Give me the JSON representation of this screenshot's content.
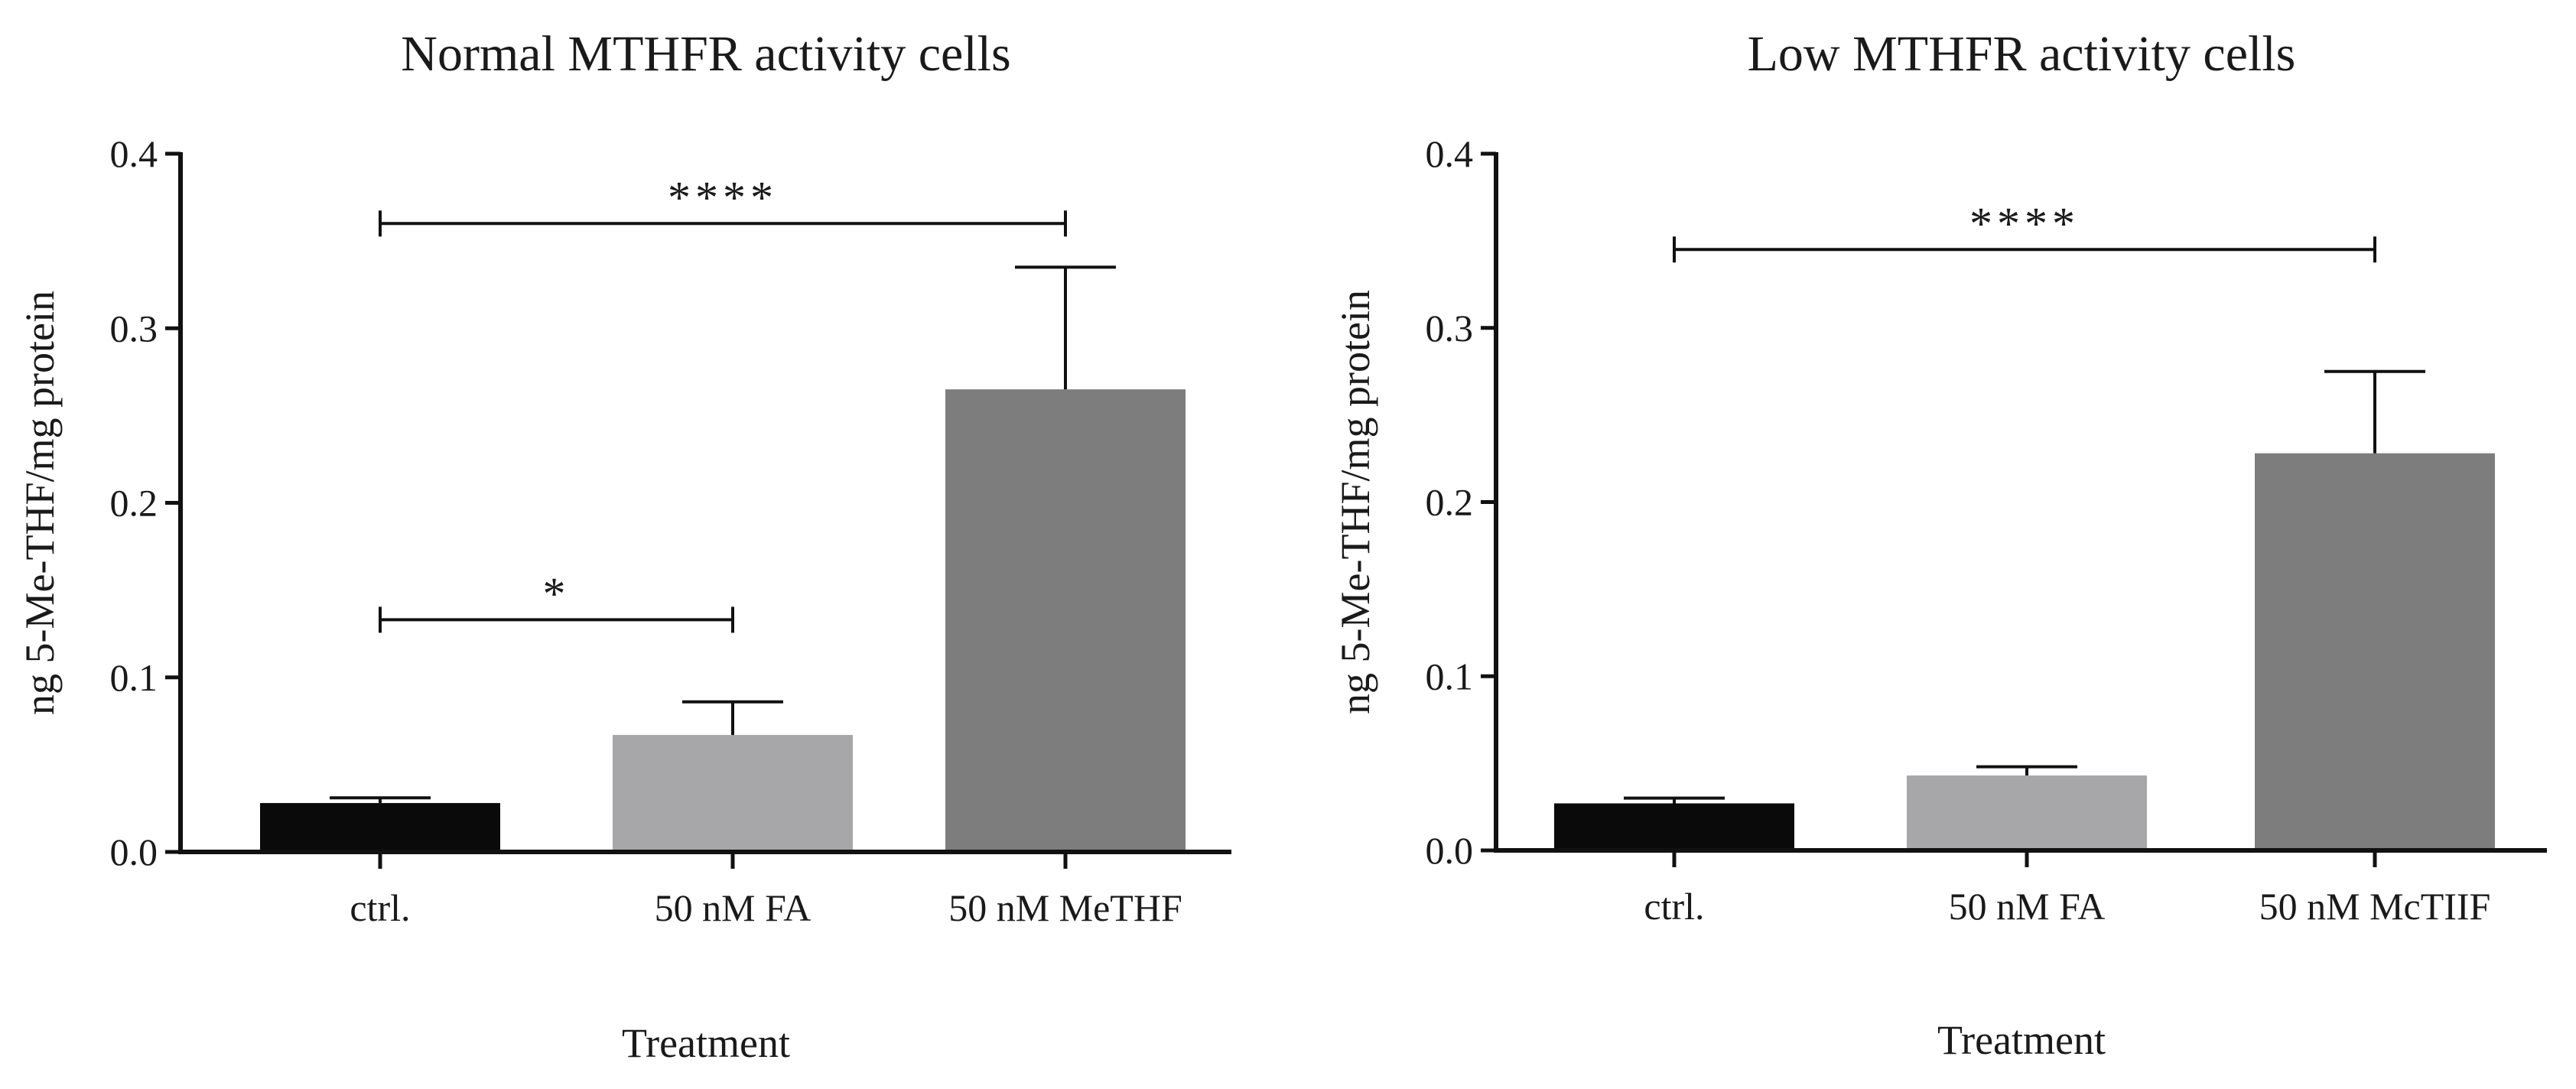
{
  "colors": {
    "axis": "#111111",
    "ctrl": "#0a0a0a",
    "fa": "#a7a7a9",
    "methf": "#7d7d7d"
  },
  "chart_data": [
    {
      "type": "bar",
      "title": "Normal MTHFR activity cells",
      "xlabel": "Treatment",
      "ylabel": "ng 5-Me-THF/mg protein",
      "ylim": [
        0,
        0.4
      ],
      "yticks": [
        "0.0",
        "0.1",
        "0.2",
        "0.3",
        "0.4"
      ],
      "categories": [
        "ctrl.",
        "50 nM FA",
        "50 nM MeTHF"
      ],
      "values": [
        0.028,
        0.067,
        0.265
      ],
      "errors": [
        0.003,
        0.019,
        0.07
      ],
      "significance": [
        {
          "from": 0,
          "to": 1,
          "label": "*",
          "y": 0.133
        },
        {
          "from": 0,
          "to": 2,
          "label": "****",
          "y": 0.36
        }
      ]
    },
    {
      "type": "bar",
      "title": "Low MTHFR activity cells",
      "xlabel": "Treatment",
      "ylabel": "ng 5-Me-THF/mg protein",
      "ylim": [
        0,
        0.4
      ],
      "yticks": [
        "0.0",
        "0.1",
        "0.2",
        "0.3",
        "0.4"
      ],
      "categories": [
        "ctrl.",
        "50 nM FA",
        "50 nM McTIIF"
      ],
      "values": [
        0.027,
        0.043,
        0.228
      ],
      "errors": [
        0.003,
        0.005,
        0.047
      ],
      "significance": [
        {
          "from": 0,
          "to": 2,
          "label": "****",
          "y": 0.345
        }
      ]
    }
  ]
}
